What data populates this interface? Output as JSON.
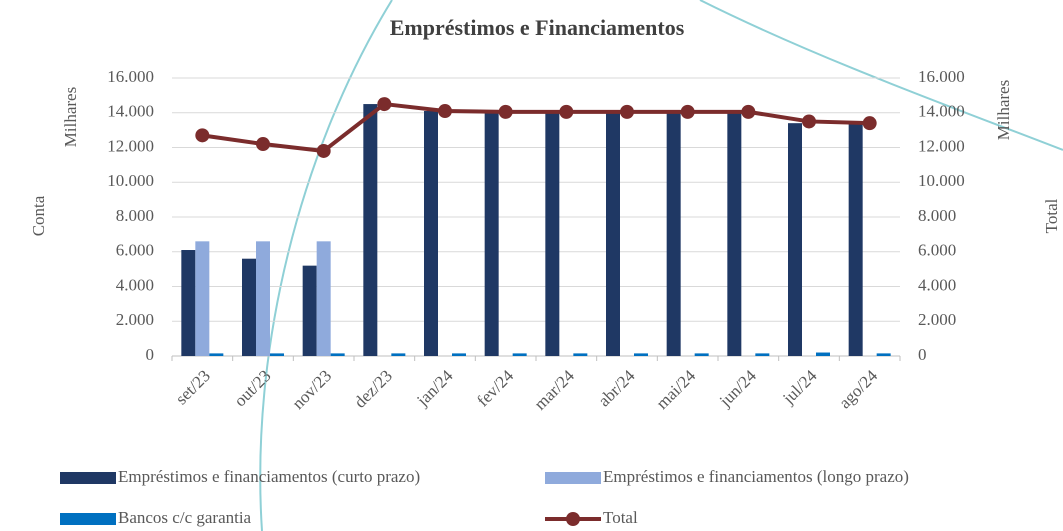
{
  "chart_data": {
    "type": "bar_line",
    "title": "Empréstimos e Financiamentos",
    "y_label": "Milhares",
    "y_outer_label": "Conta",
    "y2_label": "Milhares",
    "y2_outer_label": "Total",
    "categories": [
      "set/23",
      "out/23",
      "nov/23",
      "dez/23",
      "jan/24",
      "fev/24",
      "mar/24",
      "abr/24",
      "mai/24",
      "jun/24",
      "jul/24",
      "ago/24"
    ],
    "series": [
      {
        "name": "Empréstimos e financiamentos (curto prazo)",
        "type": "bar",
        "color": "#1f3864",
        "values": [
          6100,
          5600,
          5200,
          14500,
          14100,
          14000,
          14000,
          14000,
          14000,
          14000,
          13400,
          13400
        ]
      },
      {
        "name": "Empréstimos e financiamentos (longo prazo)",
        "type": "bar",
        "color": "#8faadc",
        "values": [
          6600,
          6600,
          6600,
          0,
          0,
          0,
          0,
          0,
          0,
          0,
          0,
          0
        ]
      },
      {
        "name": "Bancos c/c garantia",
        "type": "bar",
        "color": "#0070c0",
        "values": [
          150,
          150,
          150,
          150,
          150,
          150,
          150,
          150,
          150,
          150,
          200,
          150
        ]
      },
      {
        "name": "Total",
        "type": "line",
        "axis": "y2",
        "color": "#7b2c2c",
        "values": [
          12700,
          12200,
          11800,
          14500,
          14100,
          14050,
          14050,
          14050,
          14050,
          14050,
          13500,
          13400
        ]
      }
    ],
    "ylim": [
      0,
      16000
    ],
    "yticks": [
      {
        "value": 0,
        "label": "0"
      },
      {
        "value": 2000,
        "label": "2.000"
      },
      {
        "value": 4000,
        "label": "4.000"
      },
      {
        "value": 6000,
        "label": "6.000"
      },
      {
        "value": 8000,
        "label": "8.000"
      },
      {
        "value": 10000,
        "label": "10.000"
      },
      {
        "value": 12000,
        "label": "12.000"
      },
      {
        "value": 14000,
        "label": "14.000"
      },
      {
        "value": 16000,
        "label": "16.000"
      }
    ],
    "y2lim": [
      0,
      16000
    ],
    "y2ticks": [
      {
        "value": 0,
        "label": "0"
      },
      {
        "value": 2000,
        "label": "2.000"
      },
      {
        "value": 4000,
        "label": "4.000"
      },
      {
        "value": 6000,
        "label": "6.000"
      },
      {
        "value": 8000,
        "label": "8.000"
      },
      {
        "value": 10000,
        "label": "10.000"
      },
      {
        "value": 12000,
        "label": "12.000"
      },
      {
        "value": 14000,
        "label": "14.000"
      },
      {
        "value": 16000,
        "label": "16.000"
      }
    ],
    "grid": true
  }
}
